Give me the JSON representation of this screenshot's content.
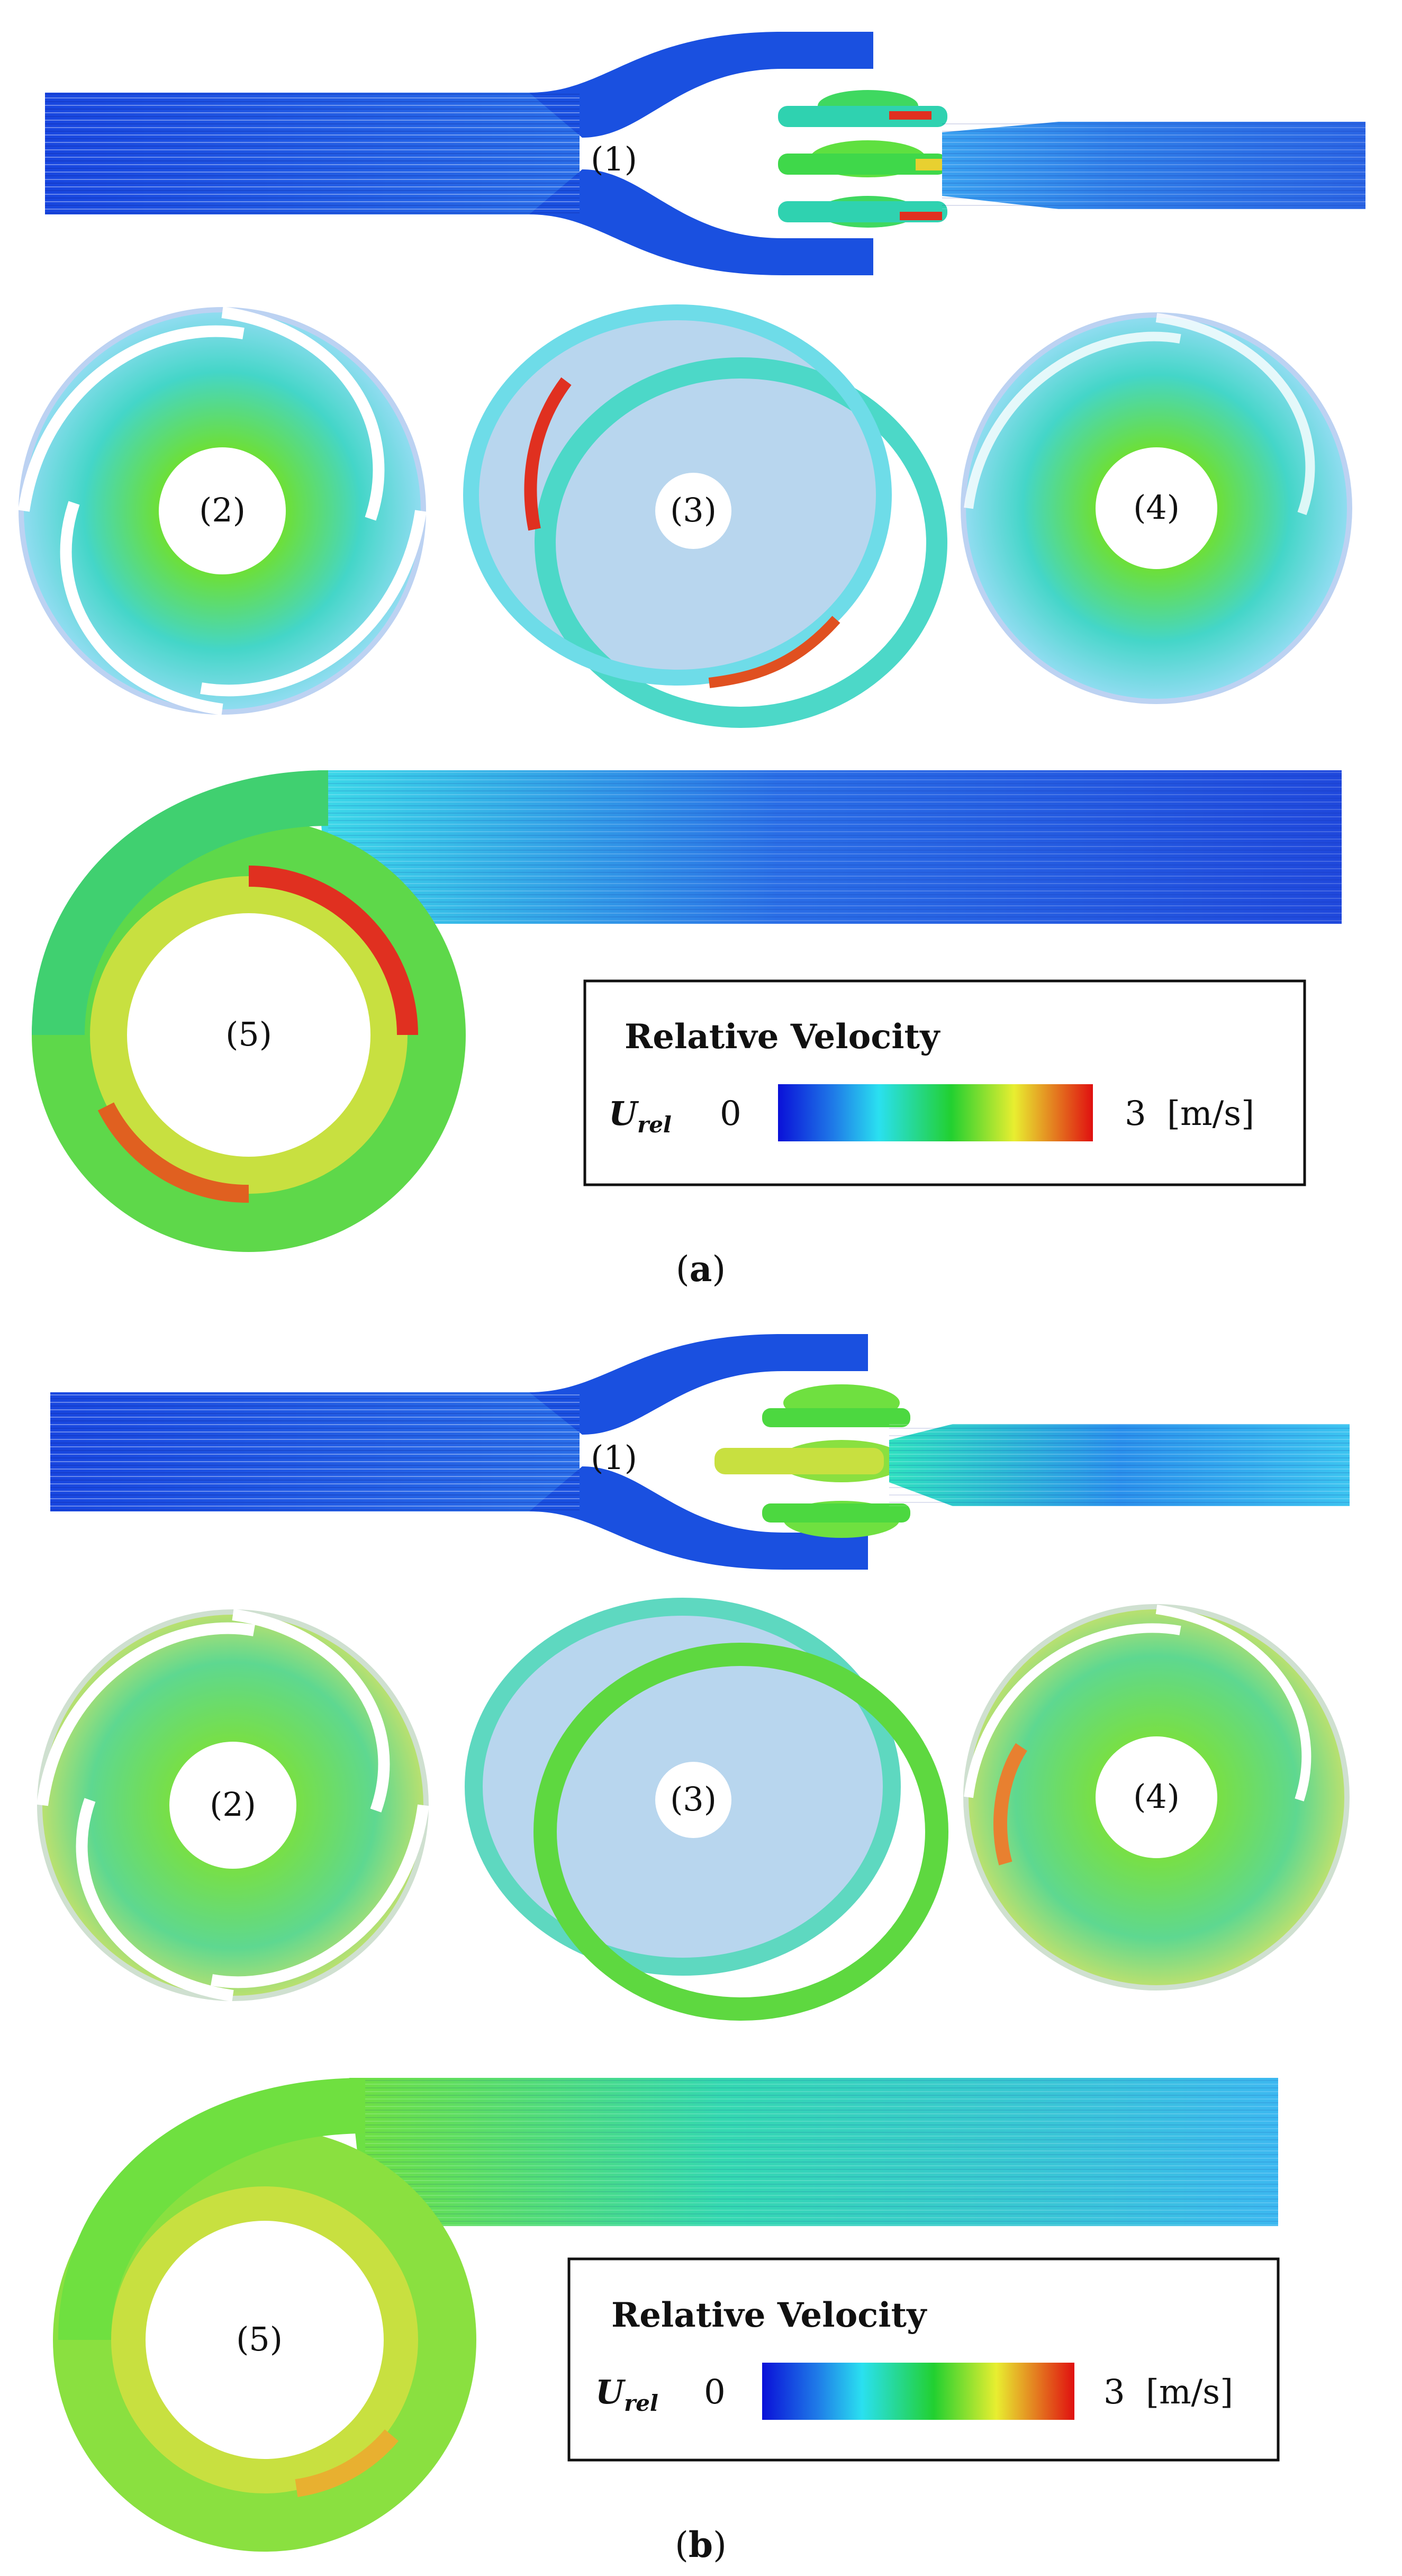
{
  "colors": {
    "low": "#1a2fd6",
    "mid_low": "#36d8f0",
    "mid": "#2fd63a",
    "mid_high": "#f0e040",
    "high": "#e0201a",
    "casing": "#b8cdee"
  },
  "panels": [
    {
      "caption_open": "(",
      "caption_letter": "a",
      "caption_close": ")",
      "labels": {
        "pipe": "(1)",
        "impeller_left": "(2)",
        "guide": "(3)",
        "impeller_right": "(4)",
        "volute": "(5)"
      },
      "legend": {
        "title": "Relative Velocity",
        "var_main": "U",
        "var_sub": "rel",
        "min": "0",
        "max": "3",
        "unit": "[m/s]"
      }
    },
    {
      "caption_open": "(",
      "caption_letter": "b",
      "caption_close": ")",
      "labels": {
        "pipe": "(1)",
        "impeller_left": "(2)",
        "guide": "(3)",
        "impeller_right": "(4)",
        "volute": "(5)"
      },
      "legend": {
        "title": "Relative Velocity",
        "var_main": "U",
        "var_sub": "rel",
        "min": "0",
        "max": "3",
        "unit": "[m/s]"
      }
    }
  ]
}
